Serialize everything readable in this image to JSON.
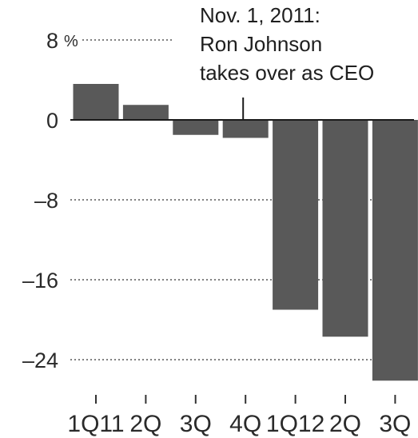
{
  "chart_data": {
    "type": "bar",
    "categories": [
      "1Q11",
      "2Q",
      "3Q",
      "4Q",
      "1Q12",
      "2Q",
      "3Q"
    ],
    "values": [
      3.6,
      1.5,
      -1.5,
      -1.8,
      -19,
      -21.7,
      -26.1
    ],
    "ylim": [
      -27,
      8
    ],
    "yticks": [
      8,
      0,
      -8,
      -16,
      -24
    ],
    "ytick_labels": [
      "8",
      "0",
      "–8",
      "–16",
      "–24"
    ],
    "ytick_unit": "%",
    "grid": "dotted",
    "bar_color": "#595959",
    "annotation": {
      "lines": [
        "Nov. 1, 2011:",
        "Ron Johnson",
        "takes over as CEO"
      ],
      "category_index": 3
    }
  }
}
